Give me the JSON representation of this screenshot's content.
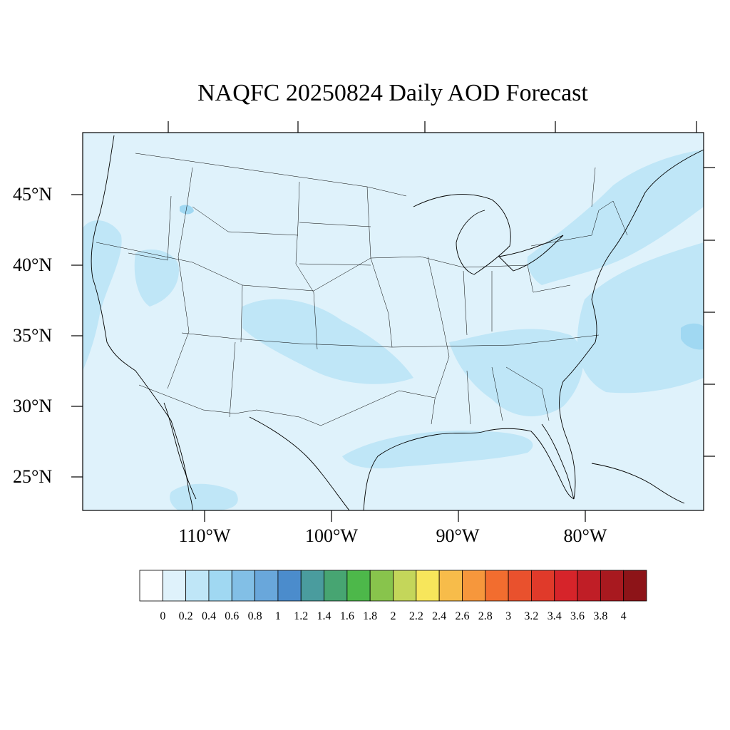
{
  "title": "NAQFC 20250824 Daily AOD Forecast",
  "map": {
    "ocean_color": "#dff2fb",
    "land_color": "#dff2fb",
    "plume_color": "#bfe6f7",
    "strong_color": "#a0d8f2",
    "lat_labels": [
      "45°N",
      "40°N",
      "35°N",
      "30°N",
      "25°N"
    ],
    "lon_labels": [
      "110°W",
      "100°W",
      "90°W",
      "80°W"
    ]
  },
  "colorbar": {
    "labels": [
      "0",
      "0.2",
      "0.4",
      "0.6",
      "0.8",
      "1",
      "1.2",
      "1.4",
      "1.6",
      "1.8",
      "2",
      "2.2",
      "2.4",
      "2.6",
      "2.8",
      "3",
      "3.2",
      "3.4",
      "3.6",
      "3.8",
      "4"
    ],
    "colors": [
      "#ffffff",
      "#dff2fb",
      "#bfe6f7",
      "#a0d8f2",
      "#82bfe6",
      "#69a7db",
      "#4b8ccc",
      "#4a9c9e",
      "#47a572",
      "#4db84a",
      "#88c44c",
      "#c4d65a",
      "#f7e65b",
      "#f7bc4a",
      "#f6973c",
      "#f26d2f",
      "#e9512d",
      "#e03a2a",
      "#d6242a",
      "#c01e26",
      "#a8191f",
      "#8d1418"
    ]
  }
}
